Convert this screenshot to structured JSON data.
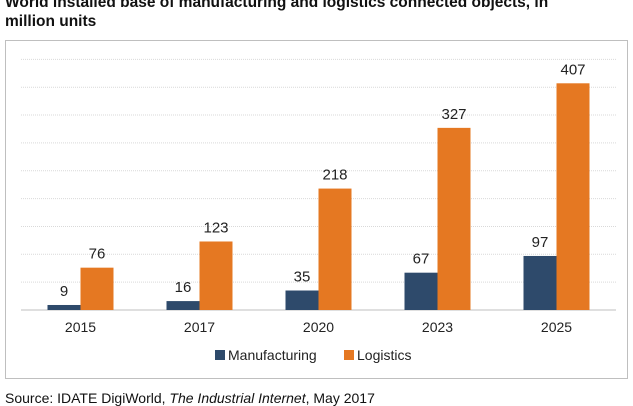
{
  "header": {
    "title_line1": "World installed base of manufacturing and logistics connected objects, in",
    "title_line2": "million units"
  },
  "source": {
    "prefix": "Source: IDATE DigiWorld, ",
    "work": "The Industrial Internet",
    "suffix": ", May 2017"
  },
  "colors": {
    "manufacturing": "#2e4a6b",
    "logistics": "#e57822",
    "gridline": "#d9d9d9",
    "axis": "#bfbfbf"
  },
  "chart_data": {
    "type": "bar",
    "categories": [
      "2015",
      "2017",
      "2020",
      "2023",
      "2025"
    ],
    "series": [
      {
        "name": "Manufacturing",
        "values": [
          9,
          16,
          35,
          67,
          97
        ]
      },
      {
        "name": "Logistics",
        "values": [
          76,
          123,
          218,
          327,
          407
        ]
      }
    ],
    "title": "World installed base of manufacturing and logistics connected objects, in million units",
    "xlabel": "",
    "ylabel": "",
    "ylim": [
      0,
      450
    ],
    "grid": true,
    "legend": "bottom",
    "data_labels": true
  }
}
